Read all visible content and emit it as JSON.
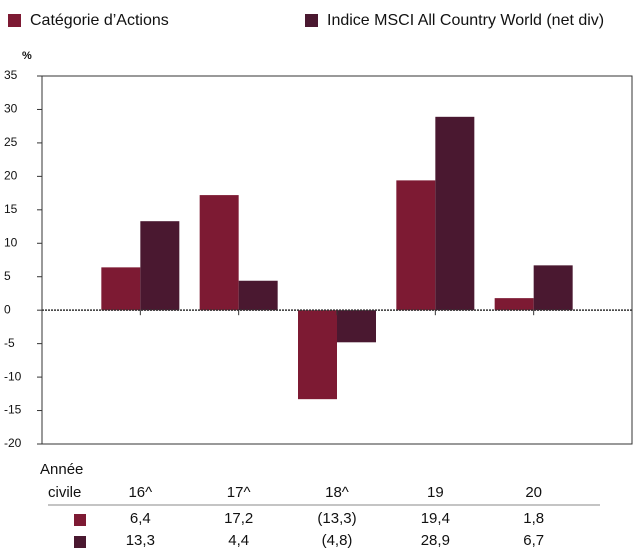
{
  "chart_data": {
    "type": "bar",
    "y_label": "%",
    "table_label": [
      "Année",
      "civile"
    ],
    "categories": [
      "16^",
      "17^",
      "18^",
      "19",
      "20"
    ],
    "series": [
      {
        "name": "Catégorie d’Actions",
        "color": "#7d1a33",
        "values": [
          6.4,
          17.2,
          -13.3,
          19.4,
          1.8
        ],
        "value_labels": [
          "6,4",
          "17,2",
          "(13,3)",
          "19,4",
          "1,8"
        ]
      },
      {
        "name": "Indice MSCI All Country World (net div)",
        "color": "#4a1830",
        "values": [
          13.3,
          4.4,
          -4.8,
          28.9,
          6.7
        ],
        "value_labels": [
          "13,3",
          "4,4",
          "(4,8)",
          "28,9",
          "6,7"
        ]
      }
    ],
    "ylim": [
      -20,
      35
    ],
    "yticks": [
      35,
      30,
      25,
      20,
      15,
      10,
      5,
      0,
      -5,
      -10,
      -15,
      -20
    ]
  }
}
